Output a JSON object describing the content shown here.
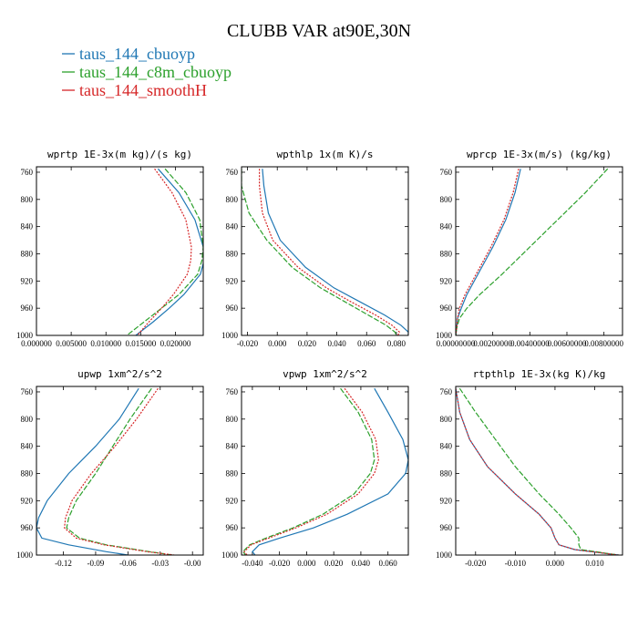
{
  "figure": {
    "title": "CLUBB VAR at90E,30N",
    "legend": [
      {
        "label": "taus_144_cbuoyp",
        "color": "#1f77b4"
      },
      {
        "label": "taus_144_c8m_cbuoyp",
        "color": "#2ca02c"
      },
      {
        "label": "taus_144_smoothH",
        "color": "#d62728"
      }
    ]
  },
  "chart_data": [
    {
      "type": "line",
      "title": "wprtp  1E-3x(m kg)/(s kg)",
      "xlim": [
        0.0,
        0.024
      ],
      "ylim": [
        1000,
        752
      ],
      "x_ticks": [
        0.0,
        0.005,
        0.01,
        0.015,
        0.02
      ],
      "x_tick_labels": [
        "0.000000",
        "0.005000",
        "0.010000",
        "0.015000",
        "0.020000"
      ],
      "y_ticks": [
        760,
        800,
        840,
        880,
        920,
        960,
        1000
      ],
      "y_tick_labels": [
        "760",
        "800",
        "840",
        "880",
        "920",
        "960",
        "1000"
      ],
      "y": [
        755,
        790,
        830,
        870,
        890,
        910,
        940,
        960,
        980,
        1000
      ],
      "series": [
        {
          "name": "taus_144_cbuoyp",
          "values": [
            0.0175,
            0.0205,
            0.0228,
            0.024,
            0.0241,
            0.0236,
            0.0212,
            0.0191,
            0.0168,
            0.0143
          ]
        },
        {
          "name": "taus_144_c8m_cbuoyp",
          "values": [
            0.0185,
            0.0215,
            0.0235,
            0.024,
            0.0238,
            0.0232,
            0.0205,
            0.018,
            0.0155,
            0.013
          ]
        },
        {
          "name": "taus_144_smoothH",
          "values": [
            0.017,
            0.0195,
            0.0215,
            0.0223,
            0.0222,
            0.0217,
            0.0197,
            0.018,
            0.0162,
            0.0145
          ]
        }
      ]
    },
    {
      "type": "line",
      "title": "wpthlp  1x(m K)/s",
      "xlim": [
        -0.024,
        0.088
      ],
      "ylim": [
        1000,
        752
      ],
      "x_ticks": [
        -0.02,
        0.0,
        0.02,
        0.04,
        0.06,
        0.08
      ],
      "x_tick_labels": [
        "-0.020",
        "0.000",
        "0.020",
        "0.040",
        "0.060",
        "0.080"
      ],
      "y_ticks": [
        760,
        800,
        840,
        880,
        920,
        960,
        1000
      ],
      "y_tick_labels": [
        "760",
        "800",
        "840",
        "880",
        "920",
        "960",
        "1000"
      ],
      "y": [
        755,
        780,
        820,
        860,
        900,
        930,
        950,
        970,
        985,
        995,
        1000
      ],
      "series": [
        {
          "name": "taus_144_cbuoyp",
          "values": [
            -0.01,
            -0.009,
            -0.006,
            0.002,
            0.019,
            0.038,
            0.055,
            0.072,
            0.083,
            0.088,
            0.088
          ]
        },
        {
          "name": "taus_144_c8m_cbuoyp",
          "values": [
            -0.024,
            -0.024,
            -0.019,
            -0.007,
            0.01,
            0.029,
            0.045,
            0.061,
            0.073,
            0.079,
            0.08
          ]
        },
        {
          "name": "taus_144_smoothH",
          "values": [
            -0.012,
            -0.012,
            -0.01,
            -0.003,
            0.014,
            0.033,
            0.049,
            0.066,
            0.077,
            0.082,
            0.081
          ]
        }
      ]
    },
    {
      "type": "line",
      "title": "wprcp  1E-3x(m/s) (kg/kg)",
      "xlim": [
        0.0,
        0.009
      ],
      "ylim": [
        1000,
        752
      ],
      "x_ticks": [
        0.0,
        0.002,
        0.004,
        0.006,
        0.008
      ],
      "x_tick_labels": [
        "0.00000000",
        "0.00200000",
        "0.00400000",
        "0.00600000",
        "0.00800000"
      ],
      "y_ticks": [
        760,
        800,
        840,
        880,
        920,
        960,
        1000
      ],
      "y_tick_labels": [
        "760",
        "800",
        "840",
        "880",
        "920",
        "960",
        "1000"
      ],
      "y": [
        755,
        790,
        830,
        870,
        910,
        940,
        960,
        975,
        990,
        1000
      ],
      "series": [
        {
          "name": "taus_144_cbuoyp",
          "values": [
            0.0035,
            0.0032,
            0.0027,
            0.002,
            0.0012,
            0.0006,
            0.0003,
            0.0001,
            5e-05,
            0.0
          ]
        },
        {
          "name": "taus_144_c8m_cbuoyp",
          "values": [
            0.0082,
            0.007,
            0.0055,
            0.004,
            0.0025,
            0.0013,
            0.0006,
            0.0002,
            5e-05,
            0.0
          ]
        },
        {
          "name": "taus_144_smoothH",
          "values": [
            0.0034,
            0.0031,
            0.0026,
            0.0019,
            0.0011,
            0.0005,
            0.0002,
            0.0001,
            5e-05,
            0.0
          ]
        }
      ]
    },
    {
      "type": "line",
      "title": "upwp  1xm^2/s^2",
      "xlim": [
        -0.145,
        0.01
      ],
      "ylim": [
        1000,
        752
      ],
      "x_ticks": [
        -0.12,
        -0.09,
        -0.06,
        -0.03,
        0.0
      ],
      "x_tick_labels": [
        "-0.12",
        "-0.09",
        "-0.06",
        "-0.03",
        "-0.00"
      ],
      "y_ticks": [
        760,
        800,
        840,
        880,
        920,
        960,
        1000
      ],
      "y_tick_labels": [
        "760",
        "800",
        "840",
        "880",
        "920",
        "960",
        "1000"
      ],
      "y": [
        755,
        800,
        840,
        880,
        920,
        945,
        960,
        975,
        985,
        995,
        1000
      ],
      "series": [
        {
          "name": "taus_144_cbuoyp",
          "values": [
            -0.05,
            -0.068,
            -0.09,
            -0.115,
            -0.135,
            -0.143,
            -0.145,
            -0.14,
            -0.115,
            -0.08,
            -0.06
          ]
        },
        {
          "name": "taus_144_c8m_cbuoyp",
          "values": [
            -0.038,
            -0.058,
            -0.074,
            -0.09,
            -0.108,
            -0.115,
            -0.117,
            -0.105,
            -0.08,
            -0.04,
            -0.018
          ]
        },
        {
          "name": "taus_144_smoothH",
          "values": [
            -0.032,
            -0.052,
            -0.072,
            -0.094,
            -0.112,
            -0.118,
            -0.119,
            -0.108,
            -0.082,
            -0.042,
            -0.017
          ]
        }
      ]
    },
    {
      "type": "line",
      "title": "vpwp  1xm^2/s^2",
      "xlim": [
        -0.048,
        0.075
      ],
      "ylim": [
        1000,
        752
      ],
      "x_ticks": [
        -0.04,
        -0.02,
        0.0,
        0.02,
        0.04,
        0.06
      ],
      "x_tick_labels": [
        "-0.040",
        "-0.020",
        "0.000",
        "0.020",
        "0.040",
        "0.060"
      ],
      "y_ticks": [
        760,
        800,
        840,
        880,
        920,
        960,
        1000
      ],
      "y_tick_labels": [
        "760",
        "800",
        "840",
        "880",
        "920",
        "960",
        "1000"
      ],
      "y": [
        755,
        790,
        830,
        860,
        880,
        910,
        940,
        960,
        975,
        985,
        995,
        1000
      ],
      "series": [
        {
          "name": "taus_144_cbuoyp",
          "values": [
            0.05,
            0.06,
            0.071,
            0.075,
            0.073,
            0.06,
            0.03,
            0.005,
            -0.02,
            -0.035,
            -0.04,
            -0.038
          ]
        },
        {
          "name": "taus_144_c8m_cbuoyp",
          "values": [
            0.025,
            0.038,
            0.048,
            0.05,
            0.047,
            0.035,
            0.012,
            -0.01,
            -0.03,
            -0.042,
            -0.047,
            -0.045
          ]
        },
        {
          "name": "taus_144_smoothH",
          "values": [
            0.028,
            0.041,
            0.051,
            0.053,
            0.05,
            0.038,
            0.015,
            -0.008,
            -0.028,
            -0.041,
            -0.046,
            -0.044
          ]
        }
      ]
    },
    {
      "type": "line",
      "title": "rtpthlp  1E-3x(kg K)/kg",
      "xlim": [
        -0.025,
        0.017
      ],
      "ylim": [
        1000,
        752
      ],
      "x_ticks": [
        -0.02,
        -0.01,
        0.0,
        0.01
      ],
      "x_tick_labels": [
        "-0.020",
        "-0.010",
        "0.000",
        "0.010"
      ],
      "y_ticks": [
        760,
        800,
        840,
        880,
        920,
        960,
        1000
      ],
      "y_tick_labels": [
        "760",
        "800",
        "840",
        "880",
        "920",
        "960",
        "1000"
      ],
      "y": [
        755,
        790,
        830,
        870,
        910,
        940,
        960,
        975,
        985,
        992,
        1000
      ],
      "series": [
        {
          "name": "taus_144_cbuoyp",
          "values": [
            -0.025,
            -0.024,
            -0.0215,
            -0.017,
            -0.01,
            -0.004,
            -0.001,
            0.0,
            0.001,
            0.005,
            0.016
          ]
        },
        {
          "name": "taus_144_c8m_cbuoyp",
          "values": [
            -0.024,
            -0.02,
            -0.015,
            -0.01,
            -0.004,
            0.001,
            0.004,
            0.006,
            0.006,
            0.0065,
            0.016
          ]
        },
        {
          "name": "taus_144_smoothH",
          "values": [
            -0.025,
            -0.024,
            -0.0215,
            -0.017,
            -0.01,
            -0.004,
            -0.001,
            0.0,
            0.001,
            0.005,
            0.016
          ]
        }
      ]
    }
  ]
}
